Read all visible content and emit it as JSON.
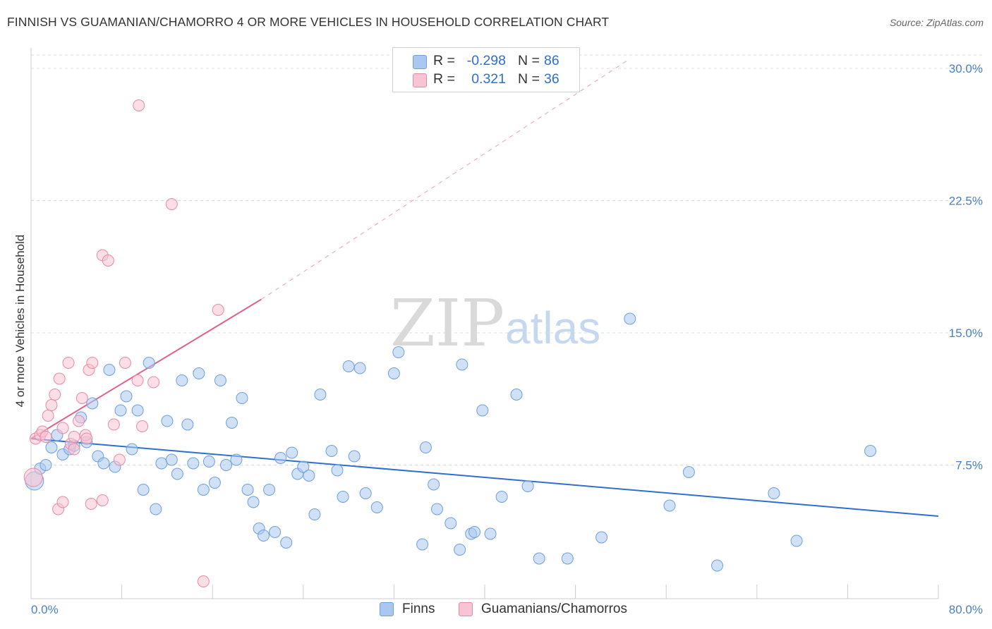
{
  "header": {
    "title": "FINNISH VS GUAMANIAN/CHAMORRO 4 OR MORE VEHICLES IN HOUSEHOLD CORRELATION CHART",
    "source": "Source: ZipAtlas.com"
  },
  "watermark": {
    "zip": "ZIP",
    "atlas": "atlas"
  },
  "legend": {
    "rows": [
      {
        "r_label": "R =",
        "r_value": "-0.298",
        "n_label": "N =",
        "n_value": "86",
        "color": "#a9c8ef",
        "border": "#6f9fde"
      },
      {
        "r_label": "R =",
        "r_value": "0.321",
        "n_label": "N =",
        "n_value": "36",
        "color": "#f8c3d2",
        "border": "#e88aa6"
      }
    ]
  },
  "bottom_legend": {
    "finns": "Finns",
    "guam": "Guamanians/Chamorros"
  },
  "chart_data": {
    "type": "scatter",
    "ylabel": "4 or more Vehicles in Household",
    "xlim": [
      0,
      80
    ],
    "ylim": [
      0,
      30.5
    ],
    "x_tick_labels": [
      "0.0%",
      "80.0%"
    ],
    "y_ticks": [
      7.5,
      15.0,
      22.5,
      30.0
    ],
    "y_tick_labels": [
      "7.5%",
      "15.0%",
      "22.5%",
      "30.0%"
    ],
    "grid": true,
    "legend_position": "top-center",
    "series": [
      {
        "name": "Finns",
        "color": "#6f9fde",
        "fill": "#a9c8ef",
        "trend": {
          "x": [
            0,
            80
          ],
          "y": [
            9.0,
            4.6
          ],
          "color": "#2f6fd0"
        },
        "points": [
          [
            0.3,
            6.6
          ],
          [
            0.8,
            7.3
          ],
          [
            1.3,
            7.5
          ],
          [
            1.8,
            8.5
          ],
          [
            2.3,
            9.2
          ],
          [
            2.8,
            8.1
          ],
          [
            3.4,
            8.4
          ],
          [
            3.8,
            8.6
          ],
          [
            4.4,
            10.2
          ],
          [
            4.9,
            8.8
          ],
          [
            5.4,
            11.0
          ],
          [
            5.9,
            8.0
          ],
          [
            6.4,
            7.6
          ],
          [
            6.9,
            12.9
          ],
          [
            7.4,
            7.4
          ],
          [
            7.9,
            10.6
          ],
          [
            8.4,
            11.4
          ],
          [
            8.9,
            8.4
          ],
          [
            9.4,
            10.6
          ],
          [
            9.9,
            6.1
          ],
          [
            10.4,
            13.3
          ],
          [
            11.0,
            5.0
          ],
          [
            11.5,
            7.6
          ],
          [
            12.0,
            10.0
          ],
          [
            12.4,
            7.8
          ],
          [
            12.9,
            7.0
          ],
          [
            13.3,
            12.3
          ],
          [
            13.8,
            9.8
          ],
          [
            14.3,
            7.6
          ],
          [
            14.8,
            12.7
          ],
          [
            15.2,
            6.1
          ],
          [
            15.7,
            7.7
          ],
          [
            16.2,
            6.5
          ],
          [
            16.7,
            12.3
          ],
          [
            17.2,
            7.5
          ],
          [
            17.7,
            9.9
          ],
          [
            18.1,
            7.8
          ],
          [
            18.6,
            11.3
          ],
          [
            19.1,
            6.1
          ],
          [
            19.6,
            5.4
          ],
          [
            20.1,
            3.9
          ],
          [
            20.5,
            3.5
          ],
          [
            21.0,
            6.1
          ],
          [
            21.5,
            3.7
          ],
          [
            22.0,
            7.9
          ],
          [
            22.5,
            3.1
          ],
          [
            23.0,
            8.2
          ],
          [
            23.5,
            7.0
          ],
          [
            24.0,
            7.4
          ],
          [
            24.5,
            6.9
          ],
          [
            25.0,
            4.7
          ],
          [
            25.5,
            11.5
          ],
          [
            26.5,
            8.3
          ],
          [
            27.0,
            7.2
          ],
          [
            27.5,
            5.7
          ],
          [
            28.0,
            13.1
          ],
          [
            28.5,
            8.0
          ],
          [
            29.0,
            13.0
          ],
          [
            29.5,
            5.9
          ],
          [
            30.5,
            5.1
          ],
          [
            32.0,
            12.7
          ],
          [
            32.4,
            13.9
          ],
          [
            34.5,
            3.0
          ],
          [
            34.8,
            8.5
          ],
          [
            35.5,
            6.4
          ],
          [
            35.8,
            5.0
          ],
          [
            37.0,
            4.2
          ],
          [
            37.8,
            2.7
          ],
          [
            38.0,
            13.2
          ],
          [
            38.8,
            3.6
          ],
          [
            39.1,
            3.7
          ],
          [
            39.8,
            10.6
          ],
          [
            40.5,
            3.6
          ],
          [
            41.5,
            5.7
          ],
          [
            42.8,
            11.5
          ],
          [
            43.8,
            6.3
          ],
          [
            44.8,
            2.2
          ],
          [
            47.3,
            2.2
          ],
          [
            50.3,
            3.4
          ],
          [
            52.8,
            15.8
          ],
          [
            56.3,
            5.2
          ],
          [
            58.0,
            7.1
          ],
          [
            60.5,
            1.8
          ],
          [
            65.5,
            5.9
          ],
          [
            67.5,
            3.2
          ],
          [
            74.0,
            8.3
          ]
        ]
      },
      {
        "name": "Guamanians/Chamorros",
        "color": "#e88aa6",
        "fill": "#f8c3d2",
        "trend": {
          "x": [
            0,
            20.3
          ],
          "y": [
            9.0,
            16.9
          ],
          "dash_to": [
            52.7,
            30.5
          ],
          "color": "#e0628a"
        },
        "points": [
          [
            0.2,
            6.8
          ],
          [
            0.4,
            9.0
          ],
          [
            0.8,
            9.2
          ],
          [
            1.0,
            9.4
          ],
          [
            1.3,
            9.1
          ],
          [
            1.5,
            10.3
          ],
          [
            1.8,
            10.9
          ],
          [
            2.1,
            11.5
          ],
          [
            2.5,
            12.4
          ],
          [
            2.8,
            9.6
          ],
          [
            3.3,
            13.3
          ],
          [
            3.5,
            8.7
          ],
          [
            3.8,
            8.4
          ],
          [
            4.2,
            10.0
          ],
          [
            4.5,
            11.3
          ],
          [
            4.8,
            9.2
          ],
          [
            5.1,
            12.9
          ],
          [
            5.4,
            13.3
          ],
          [
            6.3,
            19.4
          ],
          [
            6.8,
            19.1
          ],
          [
            7.3,
            9.8
          ],
          [
            7.8,
            7.8
          ],
          [
            8.3,
            13.3
          ],
          [
            9.4,
            12.3
          ],
          [
            9.8,
            9.7
          ],
          [
            10.8,
            12.2
          ],
          [
            12.4,
            22.3
          ],
          [
            16.5,
            16.3
          ],
          [
            15.2,
            0.9
          ],
          [
            9.5,
            27.9
          ],
          [
            2.4,
            5.0
          ],
          [
            2.8,
            5.4
          ],
          [
            5.3,
            5.3
          ],
          [
            6.3,
            5.5
          ],
          [
            3.8,
            9.1
          ],
          [
            4.9,
            9.0
          ]
        ]
      }
    ]
  }
}
